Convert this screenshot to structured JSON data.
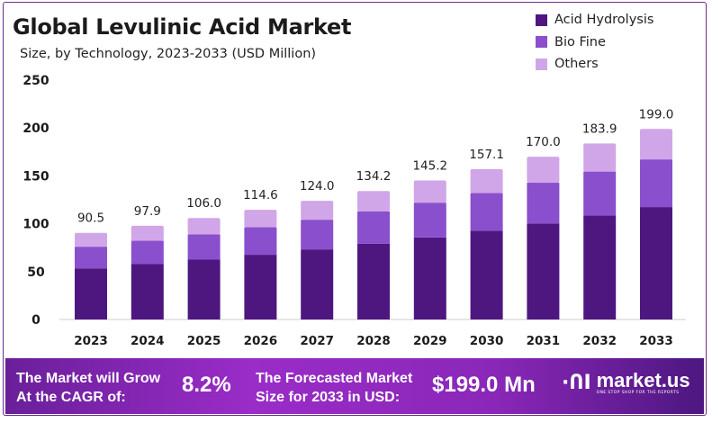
{
  "chart_data": {
    "type": "bar",
    "stacked": true,
    "title": "Global Levulinic Acid Market",
    "subtitle": "Size, by Technology, 2023-2033 (USD Million)",
    "categories": [
      "2023",
      "2024",
      "2025",
      "2026",
      "2027",
      "2028",
      "2029",
      "2030",
      "2031",
      "2032",
      "2033"
    ],
    "series": [
      {
        "name": "Acid Hydrolysis",
        "color": "#4e1780",
        "values": [
          53.4,
          57.8,
          62.5,
          67.6,
          73.2,
          79.2,
          85.7,
          92.7,
          100.3,
          108.5,
          117.4
        ]
      },
      {
        "name": "Bio Fine",
        "color": "#8a4fcc",
        "values": [
          22.6,
          24.5,
          26.5,
          28.7,
          31.0,
          33.6,
          36.3,
          39.3,
          42.5,
          46.0,
          49.8
        ]
      },
      {
        "name": "Others",
        "color": "#d0a6e8",
        "values": [
          14.5,
          15.6,
          17.0,
          18.3,
          19.8,
          21.4,
          23.2,
          25.1,
          27.2,
          29.4,
          31.8
        ]
      }
    ],
    "totals": [
      "90.5",
      "97.9",
      "106.0",
      "114.6",
      "124.0",
      "134.2",
      "145.2",
      "157.1",
      "170.0",
      "183.9",
      "199.0"
    ],
    "yticks": [
      "0",
      "50",
      "100",
      "150",
      "200",
      "250"
    ],
    "ylim": [
      0,
      250
    ],
    "grid": false,
    "legend": "top-right"
  },
  "footer": {
    "cagr_label_1": "The Market will Grow",
    "cagr_label_2": "At the CAGR of:",
    "cagr_value": "8.2%",
    "forecast_label_1": "The Forecasted Market",
    "forecast_label_2": "Size for 2033 in USD:",
    "forecast_value": "$199.0 Mn",
    "brand": "market.us",
    "brand_tagline": "ONE STOP SHOP FOR THE REPORTS"
  }
}
